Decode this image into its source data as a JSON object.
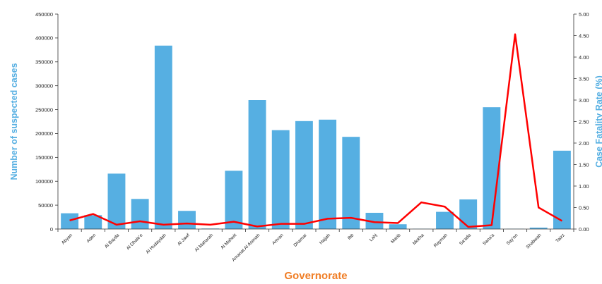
{
  "chart_data": {
    "type": "bar",
    "categories": [
      "Abyan",
      "Aden",
      "Al Bayda",
      "Al Dhale'e",
      "Al Hudaydah",
      "Al Jawf",
      "Al Maharah",
      "Al Mahwit",
      "Amanat Al Asimah",
      "Amran",
      "Dhamar",
      "Hajjah",
      "Ibb",
      "Lahj",
      "Marib",
      "Mokha",
      "Raymah",
      "Sa'ada",
      "Sana'a",
      "Say'on",
      "Shabwah",
      "Taizz"
    ],
    "series": [
      {
        "name": "Number of suspected cases",
        "type": "bar",
        "axis": "left",
        "values": [
          33000,
          29000,
          116000,
          63000,
          384000,
          38000,
          1000,
          122000,
          270000,
          207000,
          226000,
          229000,
          193000,
          34000,
          10000,
          500,
          36000,
          62000,
          255000,
          500,
          3000,
          164000
        ]
      },
      {
        "name": "Case Fatality Rate (%)",
        "type": "line",
        "axis": "right",
        "values": [
          0.2,
          0.35,
          0.1,
          0.18,
          0.1,
          0.13,
          0.1,
          0.17,
          0.06,
          0.12,
          0.12,
          0.24,
          0.26,
          0.16,
          0.14,
          0.62,
          0.52,
          0.05,
          0.09,
          4.53,
          0.5,
          0.19
        ]
      }
    ],
    "xlabel": "Governorate",
    "ylabel": "Number of suspected cases",
    "y2label": "Case Fatality Rate (%)",
    "ylim": [
      0,
      450000
    ],
    "y2lim": [
      0,
      5
    ],
    "yticks": [
      "0",
      "50000",
      "100000",
      "150000",
      "200000",
      "250000",
      "300000",
      "350000",
      "400000",
      "450000"
    ],
    "y2ticks": [
      "0.00",
      "0.50",
      "1.00",
      "1.50",
      "2.00",
      "2.50",
      "3.00",
      "3.50",
      "4.00",
      "4.50",
      "5.00"
    ],
    "grid": false,
    "colors": {
      "bar": "#56afe2",
      "line": "#ff0000",
      "xlabel": "#f07e26",
      "ylabel": "#56afe2",
      "y2label": "#56afe2"
    }
  }
}
